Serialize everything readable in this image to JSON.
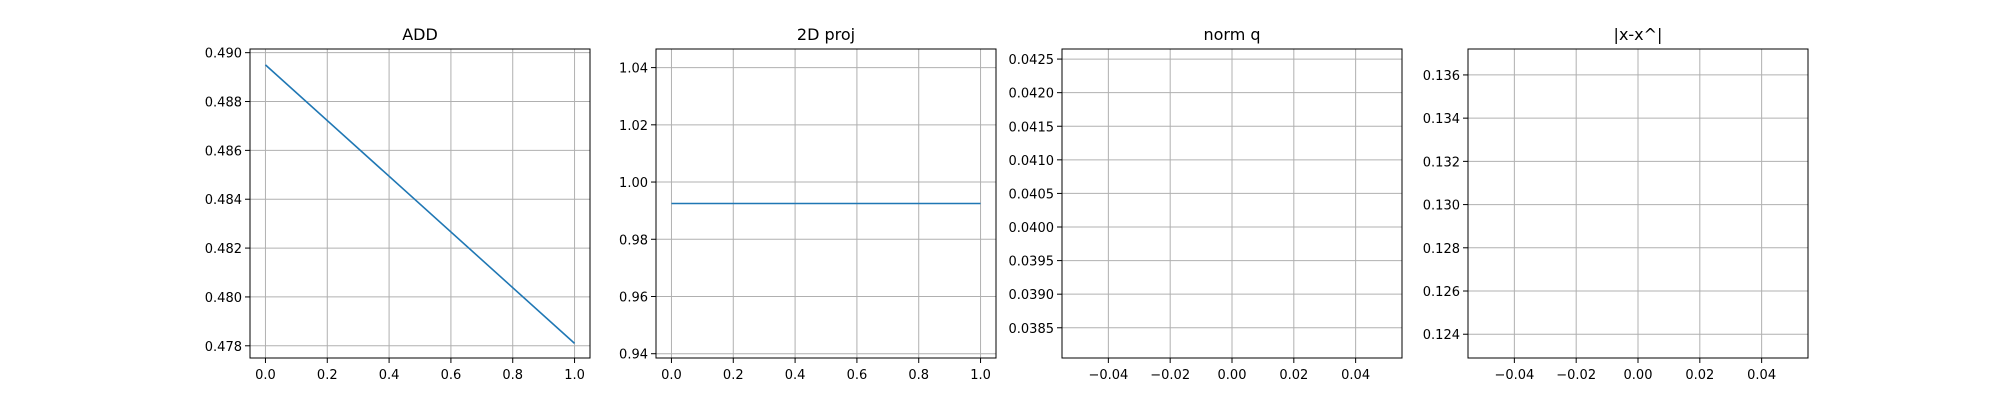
{
  "chart_data": [
    {
      "type": "line",
      "title": "ADD",
      "xlabel": "",
      "ylabel": "",
      "xlim": [
        -0.05,
        1.05
      ],
      "ylim": [
        0.4775,
        0.49015
      ],
      "xticks": [
        0.0,
        0.2,
        0.4,
        0.6,
        0.8,
        1.0
      ],
      "xtick_labels": [
        "0.0",
        "0.2",
        "0.4",
        "0.6",
        "0.8",
        "1.0"
      ],
      "yticks": [
        0.478,
        0.48,
        0.482,
        0.484,
        0.486,
        0.488,
        0.49
      ],
      "ytick_labels": [
        "0.478",
        "0.480",
        "0.482",
        "0.484",
        "0.486",
        "0.488",
        "0.490"
      ],
      "grid": true,
      "series": [
        {
          "color": "#1f77b4",
          "x": [
            0.0,
            1.0
          ],
          "y": [
            0.4895,
            0.4781
          ]
        }
      ]
    },
    {
      "type": "line",
      "title": "2D proj",
      "xlabel": "",
      "ylabel": "",
      "xlim": [
        -0.05,
        1.05
      ],
      "ylim": [
        0.9385,
        1.0465
      ],
      "xticks": [
        0.0,
        0.2,
        0.4,
        0.6,
        0.8,
        1.0
      ],
      "xtick_labels": [
        "0.0",
        "0.2",
        "0.4",
        "0.6",
        "0.8",
        "1.0"
      ],
      "yticks": [
        0.94,
        0.96,
        0.98,
        1.0,
        1.02,
        1.04
      ],
      "ytick_labels": [
        "0.94",
        "0.96",
        "0.98",
        "1.00",
        "1.02",
        "1.04"
      ],
      "grid": true,
      "series": [
        {
          "color": "#1f77b4",
          "x": [
            0.0,
            1.0
          ],
          "y": [
            0.9925,
            0.9925
          ]
        }
      ]
    },
    {
      "type": "line",
      "title": "norm q",
      "xlabel": "",
      "ylabel": "",
      "xlim": [
        -0.055,
        0.055
      ],
      "ylim": [
        0.03805,
        0.04265
      ],
      "xticks": [
        -0.04,
        -0.02,
        0.0,
        0.02,
        0.04
      ],
      "xtick_labels": [
        "−0.04",
        "−0.02",
        "0.00",
        "0.02",
        "0.04"
      ],
      "yticks": [
        0.0385,
        0.039,
        0.0395,
        0.04,
        0.0405,
        0.041,
        0.0415,
        0.042,
        0.0425
      ],
      "ytick_labels": [
        "0.0385",
        "0.0390",
        "0.0395",
        "0.0400",
        "0.0405",
        "0.0410",
        "0.0415",
        "0.0420",
        "0.0425"
      ],
      "grid": true,
      "series": []
    },
    {
      "type": "line",
      "title": "|x-x^|",
      "xlabel": "",
      "ylabel": "",
      "xlim": [
        -0.055,
        0.055
      ],
      "ylim": [
        0.1229,
        0.1372
      ],
      "xticks": [
        -0.04,
        -0.02,
        0.0,
        0.02,
        0.04
      ],
      "xtick_labels": [
        "−0.04",
        "−0.02",
        "0.00",
        "0.02",
        "0.04"
      ],
      "yticks": [
        0.124,
        0.126,
        0.128,
        0.13,
        0.132,
        0.134,
        0.136
      ],
      "ytick_labels": [
        "0.124",
        "0.126",
        "0.128",
        "0.130",
        "0.132",
        "0.134",
        "0.136"
      ],
      "grid": true,
      "series": []
    }
  ]
}
